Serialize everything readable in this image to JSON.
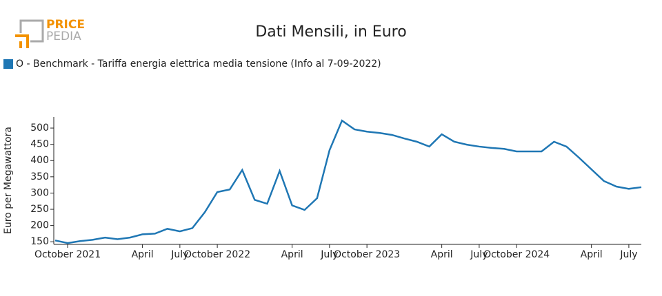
{
  "logo": {
    "line1": "PRICE",
    "line2": "PEDIA"
  },
  "chart_data": {
    "type": "line",
    "title": "Dati Mensili, in Euro",
    "y_label": "Euro per Megawattora",
    "categories": [
      null,
      "October 2021",
      null,
      null,
      null,
      null,
      null,
      "April",
      null,
      null,
      "July",
      null,
      null,
      "October 2022",
      null,
      null,
      null,
      null,
      null,
      "April",
      null,
      null,
      "July",
      null,
      null,
      "October 2023",
      null,
      null,
      null,
      null,
      null,
      "April",
      null,
      null,
      "July",
      null,
      null,
      "October 2024",
      null,
      null,
      null,
      null,
      null,
      "April",
      null,
      null,
      "July",
      null
    ],
    "series": [
      {
        "name": "O - Benchmark - Tariffa energia elettrica media tensione (Info al 7-09-2022)",
        "color": "#1f77b4",
        "values": [
          154,
          146,
          152,
          156,
          163,
          158,
          163,
          173,
          175,
          190,
          182,
          192,
          241,
          303,
          311,
          371,
          279,
          267,
          368,
          262,
          248,
          284,
          432,
          523,
          496,
          489,
          485,
          479,
          468,
          458,
          443,
          481,
          458,
          449,
          443,
          439,
          436,
          428,
          428,
          428,
          458,
          443,
          409,
          373,
          337,
          320,
          313,
          318
        ]
      }
    ],
    "ylim": [
      142,
      534
    ],
    "yticks": [
      150,
      200,
      250,
      300,
      350,
      400,
      450,
      500
    ],
    "grid": false,
    "legend": "top-left"
  }
}
